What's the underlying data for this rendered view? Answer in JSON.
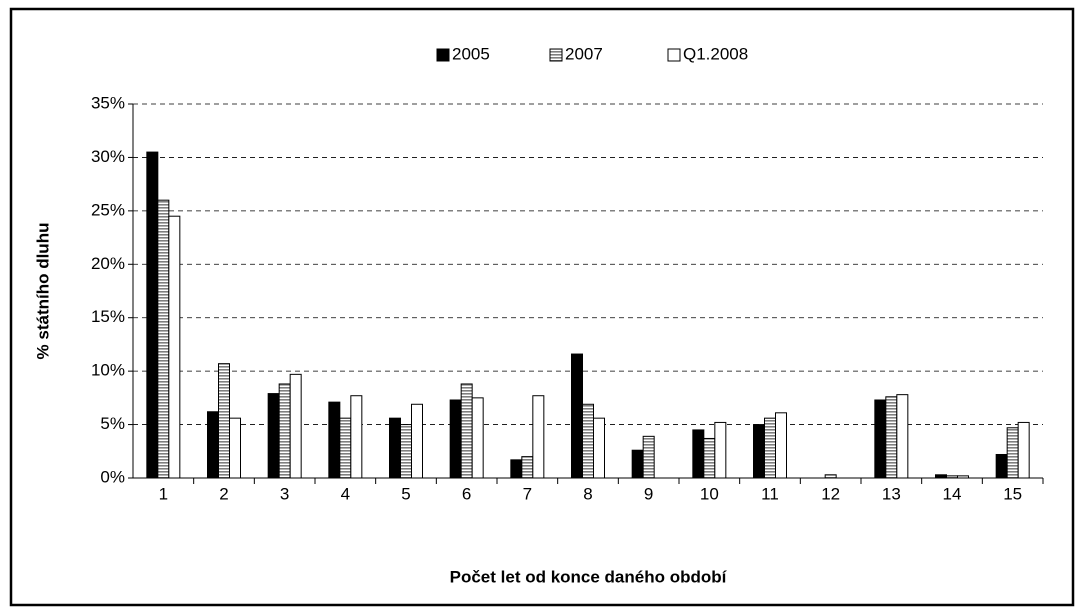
{
  "chart_data": {
    "type": "bar",
    "x_label": "Počet let od konce daného období",
    "y_label": "% státního dluhu",
    "categories": [
      "1",
      "2",
      "3",
      "4",
      "5",
      "6",
      "7",
      "8",
      "9",
      "10",
      "11",
      "12",
      "13",
      "14",
      "15"
    ],
    "series": [
      {
        "name": "2005",
        "color": "#000000",
        "values": [
          30.5,
          6.2,
          7.9,
          7.1,
          5.6,
          7.3,
          1.7,
          11.6,
          2.6,
          4.5,
          5.0,
          0,
          7.3,
          0.3,
          2.2
        ]
      },
      {
        "name": "2007",
        "color": "#a6a6a6",
        "pattern": "horizontal-stripes",
        "values": [
          26.0,
          10.7,
          8.8,
          5.6,
          5.0,
          8.8,
          2.0,
          6.9,
          3.9,
          3.7,
          5.6,
          0.3,
          7.6,
          0.2,
          4.7
        ]
      },
      {
        "name": "Q1.2008",
        "color": "#ffffff",
        "values": [
          24.5,
          5.6,
          9.7,
          7.7,
          6.9,
          7.5,
          7.7,
          5.6,
          0,
          5.2,
          6.1,
          0,
          7.8,
          0.2,
          5.2
        ]
      }
    ],
    "ylim": [
      0,
      35
    ],
    "yticks": [
      {
        "value": 0,
        "label": "0%"
      },
      {
        "value": 5,
        "label": "5%"
      },
      {
        "value": 10,
        "label": "10%"
      },
      {
        "value": 15,
        "label": "15%"
      },
      {
        "value": 20,
        "label": "20%"
      },
      {
        "value": 25,
        "label": "25%"
      },
      {
        "value": 30,
        "label": "30%"
      },
      {
        "value": 35,
        "label": "35%"
      }
    ],
    "grid": true,
    "legend": "top"
  }
}
